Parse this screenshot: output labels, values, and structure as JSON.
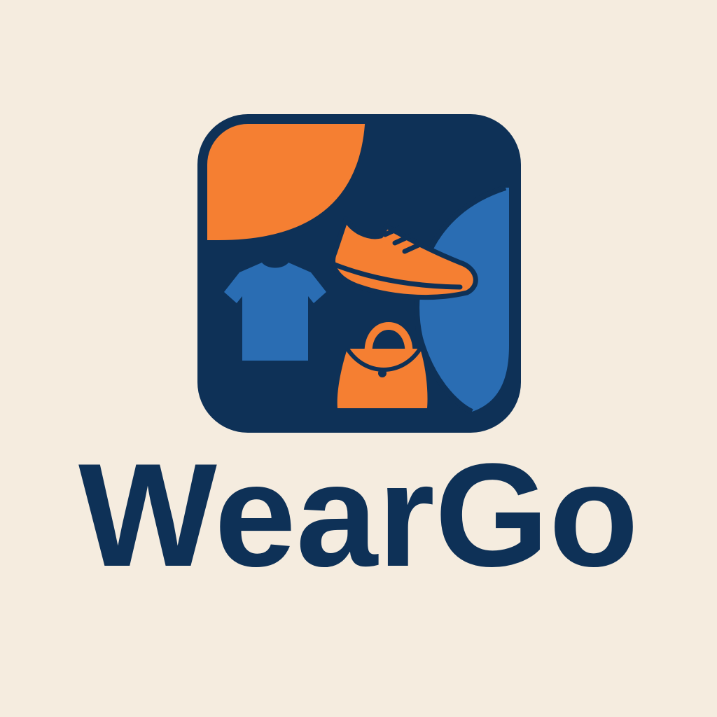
{
  "brand": {
    "name": "WearGo"
  },
  "colors": {
    "background": "#f5ecdf",
    "navy": "#0e3157",
    "orange": "#f57f32",
    "blue": "#2a6db3"
  },
  "icons": [
    "app-tile-icon",
    "tshirt-icon",
    "sneaker-icon",
    "handbag-icon"
  ]
}
